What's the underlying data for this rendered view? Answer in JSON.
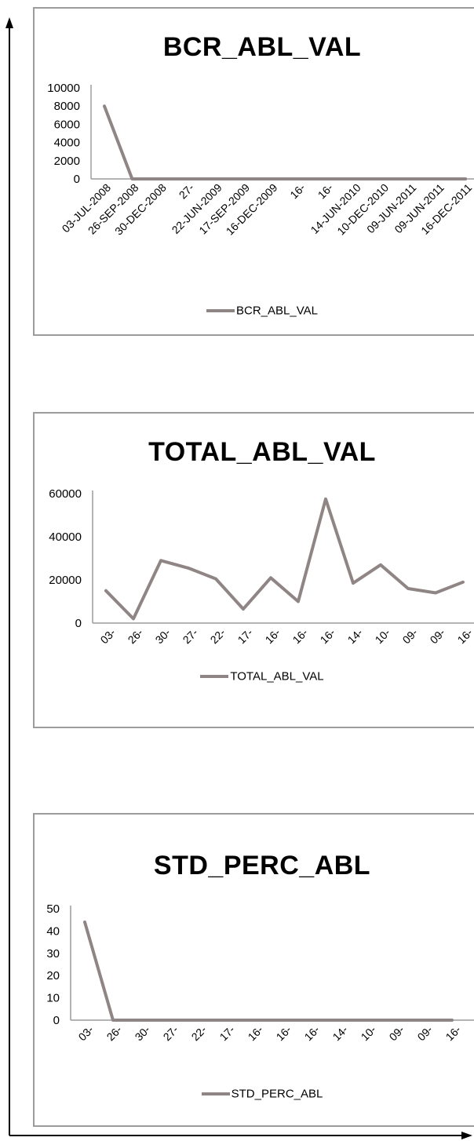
{
  "colors": {
    "series": "#8f8584",
    "axis": "#9c9c9c",
    "outer_axis": "#000000"
  },
  "chart_data": [
    {
      "type": "line",
      "title": "BCR_ABL_VAL",
      "legend": "BCR_ABL_VAL",
      "legend_position": "bottom",
      "grid": false,
      "ylim": [
        0,
        10000
      ],
      "yticks": [
        "10000",
        "8000",
        "6000",
        "4000",
        "2000",
        "0"
      ],
      "x": [
        "03-JUL-2008",
        "26-SEP-2008",
        "30-DEC-2008",
        "27-",
        "22-JUN-2009",
        "17-SEP-2009",
        "16-DEC-2009",
        "16-",
        "16-",
        "14-JUN-2010",
        "10-DEC-2010",
        "09-JUN-2011",
        "09-JUN-2011",
        "16-DEC-2011"
      ],
      "series": [
        {
          "name": "BCR_ABL_VAL",
          "values": [
            8000,
            0,
            0,
            0,
            0,
            0,
            0,
            0,
            0,
            0,
            0,
            0,
            0,
            0
          ]
        }
      ]
    },
    {
      "type": "line",
      "title": "TOTAL_ABL_VAL",
      "legend": "TOTAL_ABL_VAL",
      "legend_position": "bottom",
      "grid": false,
      "ylim": [
        0,
        60000
      ],
      "yticks": [
        "60000",
        "40000",
        "20000",
        "0"
      ],
      "x": [
        "03-",
        "26-",
        "30-",
        "27-",
        "22-",
        "17-",
        "16-",
        "16-",
        "16-",
        "14-",
        "10-",
        "09-",
        "09-",
        "16-"
      ],
      "series": [
        {
          "name": "TOTAL_ABL_VAL",
          "values": [
            15000,
            2000,
            29000,
            25500,
            20500,
            6500,
            21000,
            10000,
            57500,
            18500,
            27000,
            16000,
            14000,
            19000
          ]
        }
      ]
    },
    {
      "type": "line",
      "title": "STD_PERC_ABL",
      "legend": "STD_PERC_ABL",
      "legend_position": "bottom",
      "grid": false,
      "ylim": [
        0,
        50
      ],
      "yticks": [
        "50",
        "40",
        "30",
        "20",
        "10",
        "0"
      ],
      "x": [
        "03-",
        "26-",
        "30-",
        "27-",
        "22-",
        "17-",
        "16-",
        "16-",
        "16-",
        "14-",
        "10-",
        "09-",
        "09-",
        "16-"
      ],
      "series": [
        {
          "name": "STD_PERC_ABL",
          "values": [
            44,
            0,
            0,
            0,
            0,
            0,
            0,
            0,
            0,
            0,
            0,
            0,
            0,
            0
          ]
        }
      ]
    }
  ]
}
